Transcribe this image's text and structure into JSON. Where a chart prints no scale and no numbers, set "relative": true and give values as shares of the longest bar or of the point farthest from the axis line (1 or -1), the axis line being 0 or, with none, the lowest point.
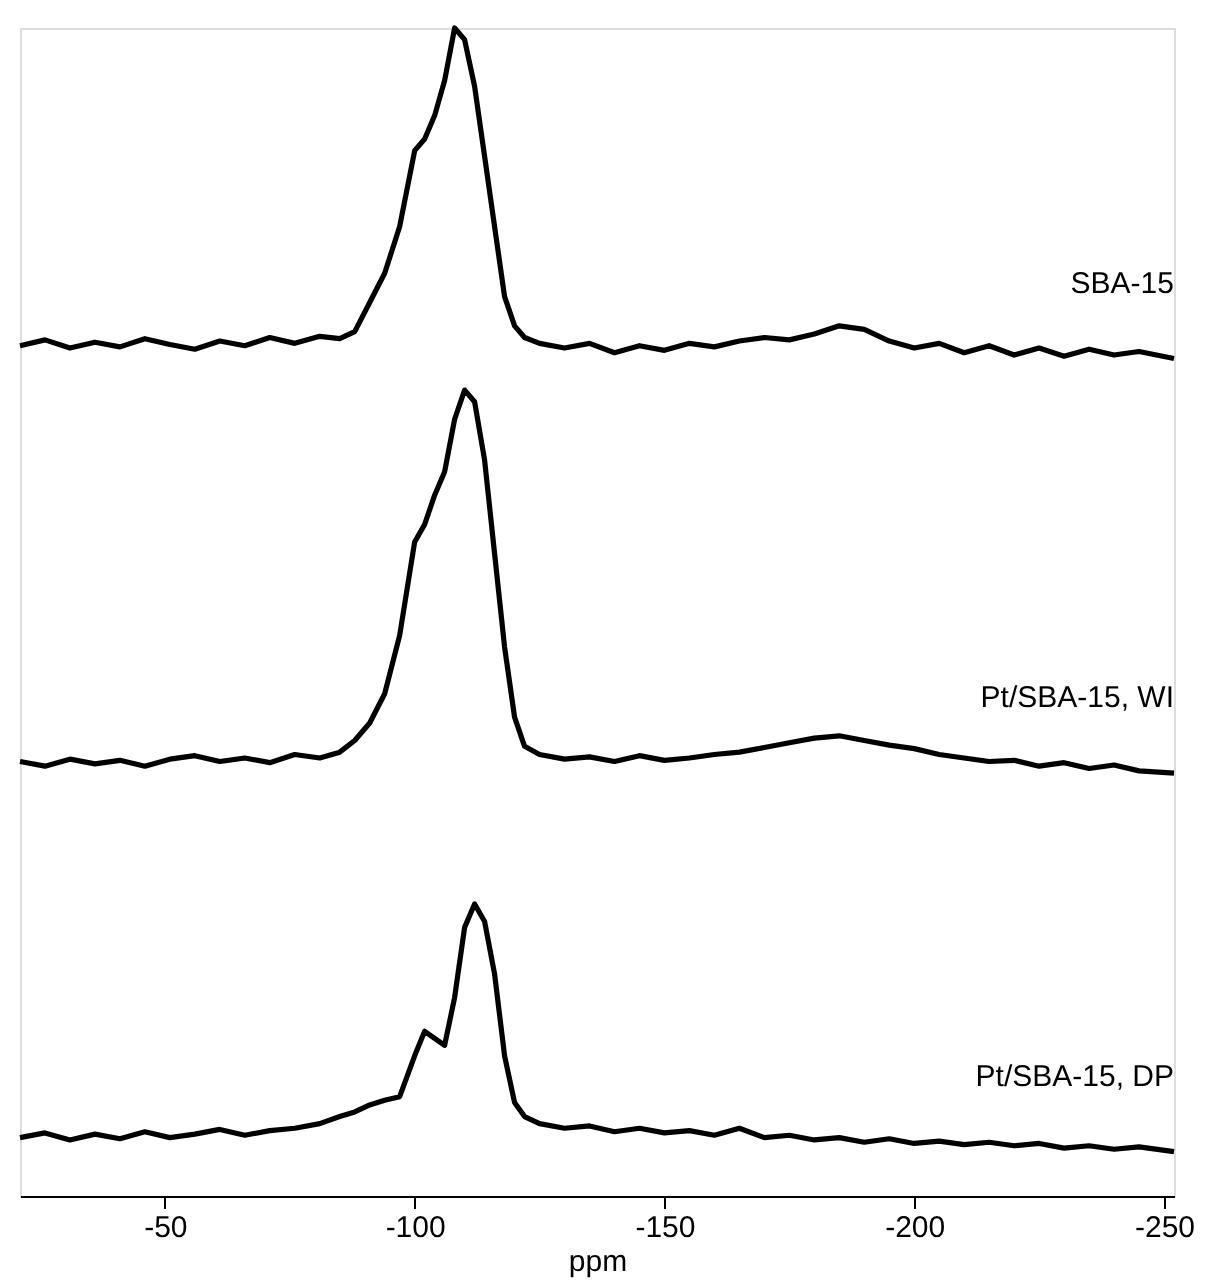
{
  "chart_data": {
    "type": "line",
    "relative": true,
    "xlabel": "ppm",
    "xlim": [
      -21,
      -252
    ],
    "xticks": [
      -50,
      -100,
      -150,
      -200,
      -250
    ],
    "grid": false,
    "legend": false,
    "marker": "none",
    "line_style": "solid",
    "x": [
      -21,
      -26,
      -31,
      -36,
      -41,
      -46,
      -51,
      -56,
      -61,
      -66,
      -71,
      -76,
      -81,
      -85,
      -88,
      -91,
      -94,
      -97,
      -100,
      -102,
      -104,
      -106,
      -108,
      -110,
      -112,
      -114,
      -116,
      -118,
      -120,
      -122,
      -125,
      -130,
      -135,
      -140,
      -145,
      -150,
      -155,
      -160,
      -165,
      -170,
      -175,
      -180,
      -185,
      -190,
      -195,
      -200,
      -205,
      -210,
      -215,
      -220,
      -225,
      -230,
      -235,
      -240,
      -245,
      -252
    ],
    "series": [
      {
        "name": "SBA-15",
        "color": "#000000",
        "values": [
          0.728,
          0.733,
          0.726,
          0.731,
          0.727,
          0.734,
          0.729,
          0.725,
          0.732,
          0.728,
          0.735,
          0.73,
          0.736,
          0.734,
          0.74,
          0.765,
          0.79,
          0.83,
          0.895,
          0.905,
          0.925,
          0.955,
          1.0,
          0.99,
          0.95,
          0.89,
          0.83,
          0.77,
          0.745,
          0.735,
          0.73,
          0.726,
          0.73,
          0.722,
          0.728,
          0.724,
          0.73,
          0.727,
          0.732,
          0.735,
          0.733,
          0.738,
          0.745,
          0.742,
          0.732,
          0.726,
          0.73,
          0.722,
          0.728,
          0.72,
          0.726,
          0.719,
          0.725,
          0.72,
          0.723,
          0.717
        ]
      },
      {
        "name": "Pt/SBA-15, WI",
        "color": "#000000",
        "values": [
          0.372,
          0.368,
          0.374,
          0.37,
          0.373,
          0.368,
          0.374,
          0.377,
          0.372,
          0.375,
          0.371,
          0.378,
          0.375,
          0.38,
          0.39,
          0.405,
          0.43,
          0.48,
          0.56,
          0.575,
          0.6,
          0.62,
          0.665,
          0.69,
          0.68,
          0.63,
          0.55,
          0.47,
          0.41,
          0.385,
          0.378,
          0.374,
          0.376,
          0.372,
          0.377,
          0.373,
          0.375,
          0.378,
          0.38,
          0.384,
          0.388,
          0.392,
          0.394,
          0.39,
          0.386,
          0.383,
          0.378,
          0.375,
          0.372,
          0.373,
          0.368,
          0.371,
          0.366,
          0.369,
          0.364,
          0.362
        ]
      },
      {
        "name": "Pt/SBA-15, DP",
        "color": "#000000",
        "values": [
          0.05,
          0.054,
          0.048,
          0.053,
          0.049,
          0.055,
          0.05,
          0.053,
          0.057,
          0.052,
          0.056,
          0.058,
          0.062,
          0.068,
          0.072,
          0.078,
          0.082,
          0.085,
          0.12,
          0.141,
          0.135,
          0.129,
          0.17,
          0.23,
          0.25,
          0.235,
          0.19,
          0.12,
          0.08,
          0.068,
          0.062,
          0.058,
          0.06,
          0.055,
          0.058,
          0.054,
          0.056,
          0.052,
          0.058,
          0.05,
          0.052,
          0.048,
          0.05,
          0.046,
          0.049,
          0.045,
          0.047,
          0.044,
          0.046,
          0.043,
          0.045,
          0.041,
          0.043,
          0.04,
          0.042,
          0.038
        ]
      }
    ]
  }
}
